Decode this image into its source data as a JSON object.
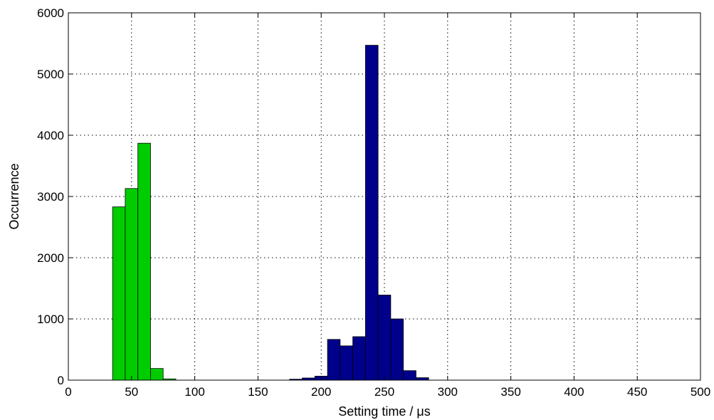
{
  "chart_data": {
    "type": "bar",
    "title": "",
    "xlabel": "Setting time / μs",
    "ylabel": "Occurrence",
    "xlim": [
      0,
      500
    ],
    "ylim": [
      0,
      6000
    ],
    "xticks": [
      0,
      50,
      100,
      150,
      200,
      250,
      300,
      350,
      400,
      450,
      500
    ],
    "yticks": [
      0,
      1000,
      2000,
      3000,
      4000,
      5000,
      6000
    ],
    "grid": true,
    "bin_width": 10,
    "series": [
      {
        "color": "#00cc00",
        "bins": [
          {
            "x0": 35,
            "x1": 45,
            "value": 2830
          },
          {
            "x0": 45,
            "x1": 55,
            "value": 3130
          },
          {
            "x0": 55,
            "x1": 65,
            "value": 3870
          },
          {
            "x0": 65,
            "x1": 75,
            "value": 190
          },
          {
            "x0": 75,
            "x1": 85,
            "value": 20
          }
        ]
      },
      {
        "color": "#00008b",
        "bins": [
          {
            "x0": 175,
            "x1": 185,
            "value": 15
          },
          {
            "x0": 185,
            "x1": 195,
            "value": 35
          },
          {
            "x0": 195,
            "x1": 205,
            "value": 65
          },
          {
            "x0": 205,
            "x1": 215,
            "value": 665
          },
          {
            "x0": 215,
            "x1": 225,
            "value": 560
          },
          {
            "x0": 225,
            "x1": 235,
            "value": 710
          },
          {
            "x0": 235,
            "x1": 245,
            "value": 5470
          },
          {
            "x0": 245,
            "x1": 255,
            "value": 1390
          },
          {
            "x0": 255,
            "x1": 265,
            "value": 1000
          },
          {
            "x0": 265,
            "x1": 275,
            "value": 155
          },
          {
            "x0": 275,
            "x1": 285,
            "value": 40
          }
        ]
      }
    ]
  }
}
